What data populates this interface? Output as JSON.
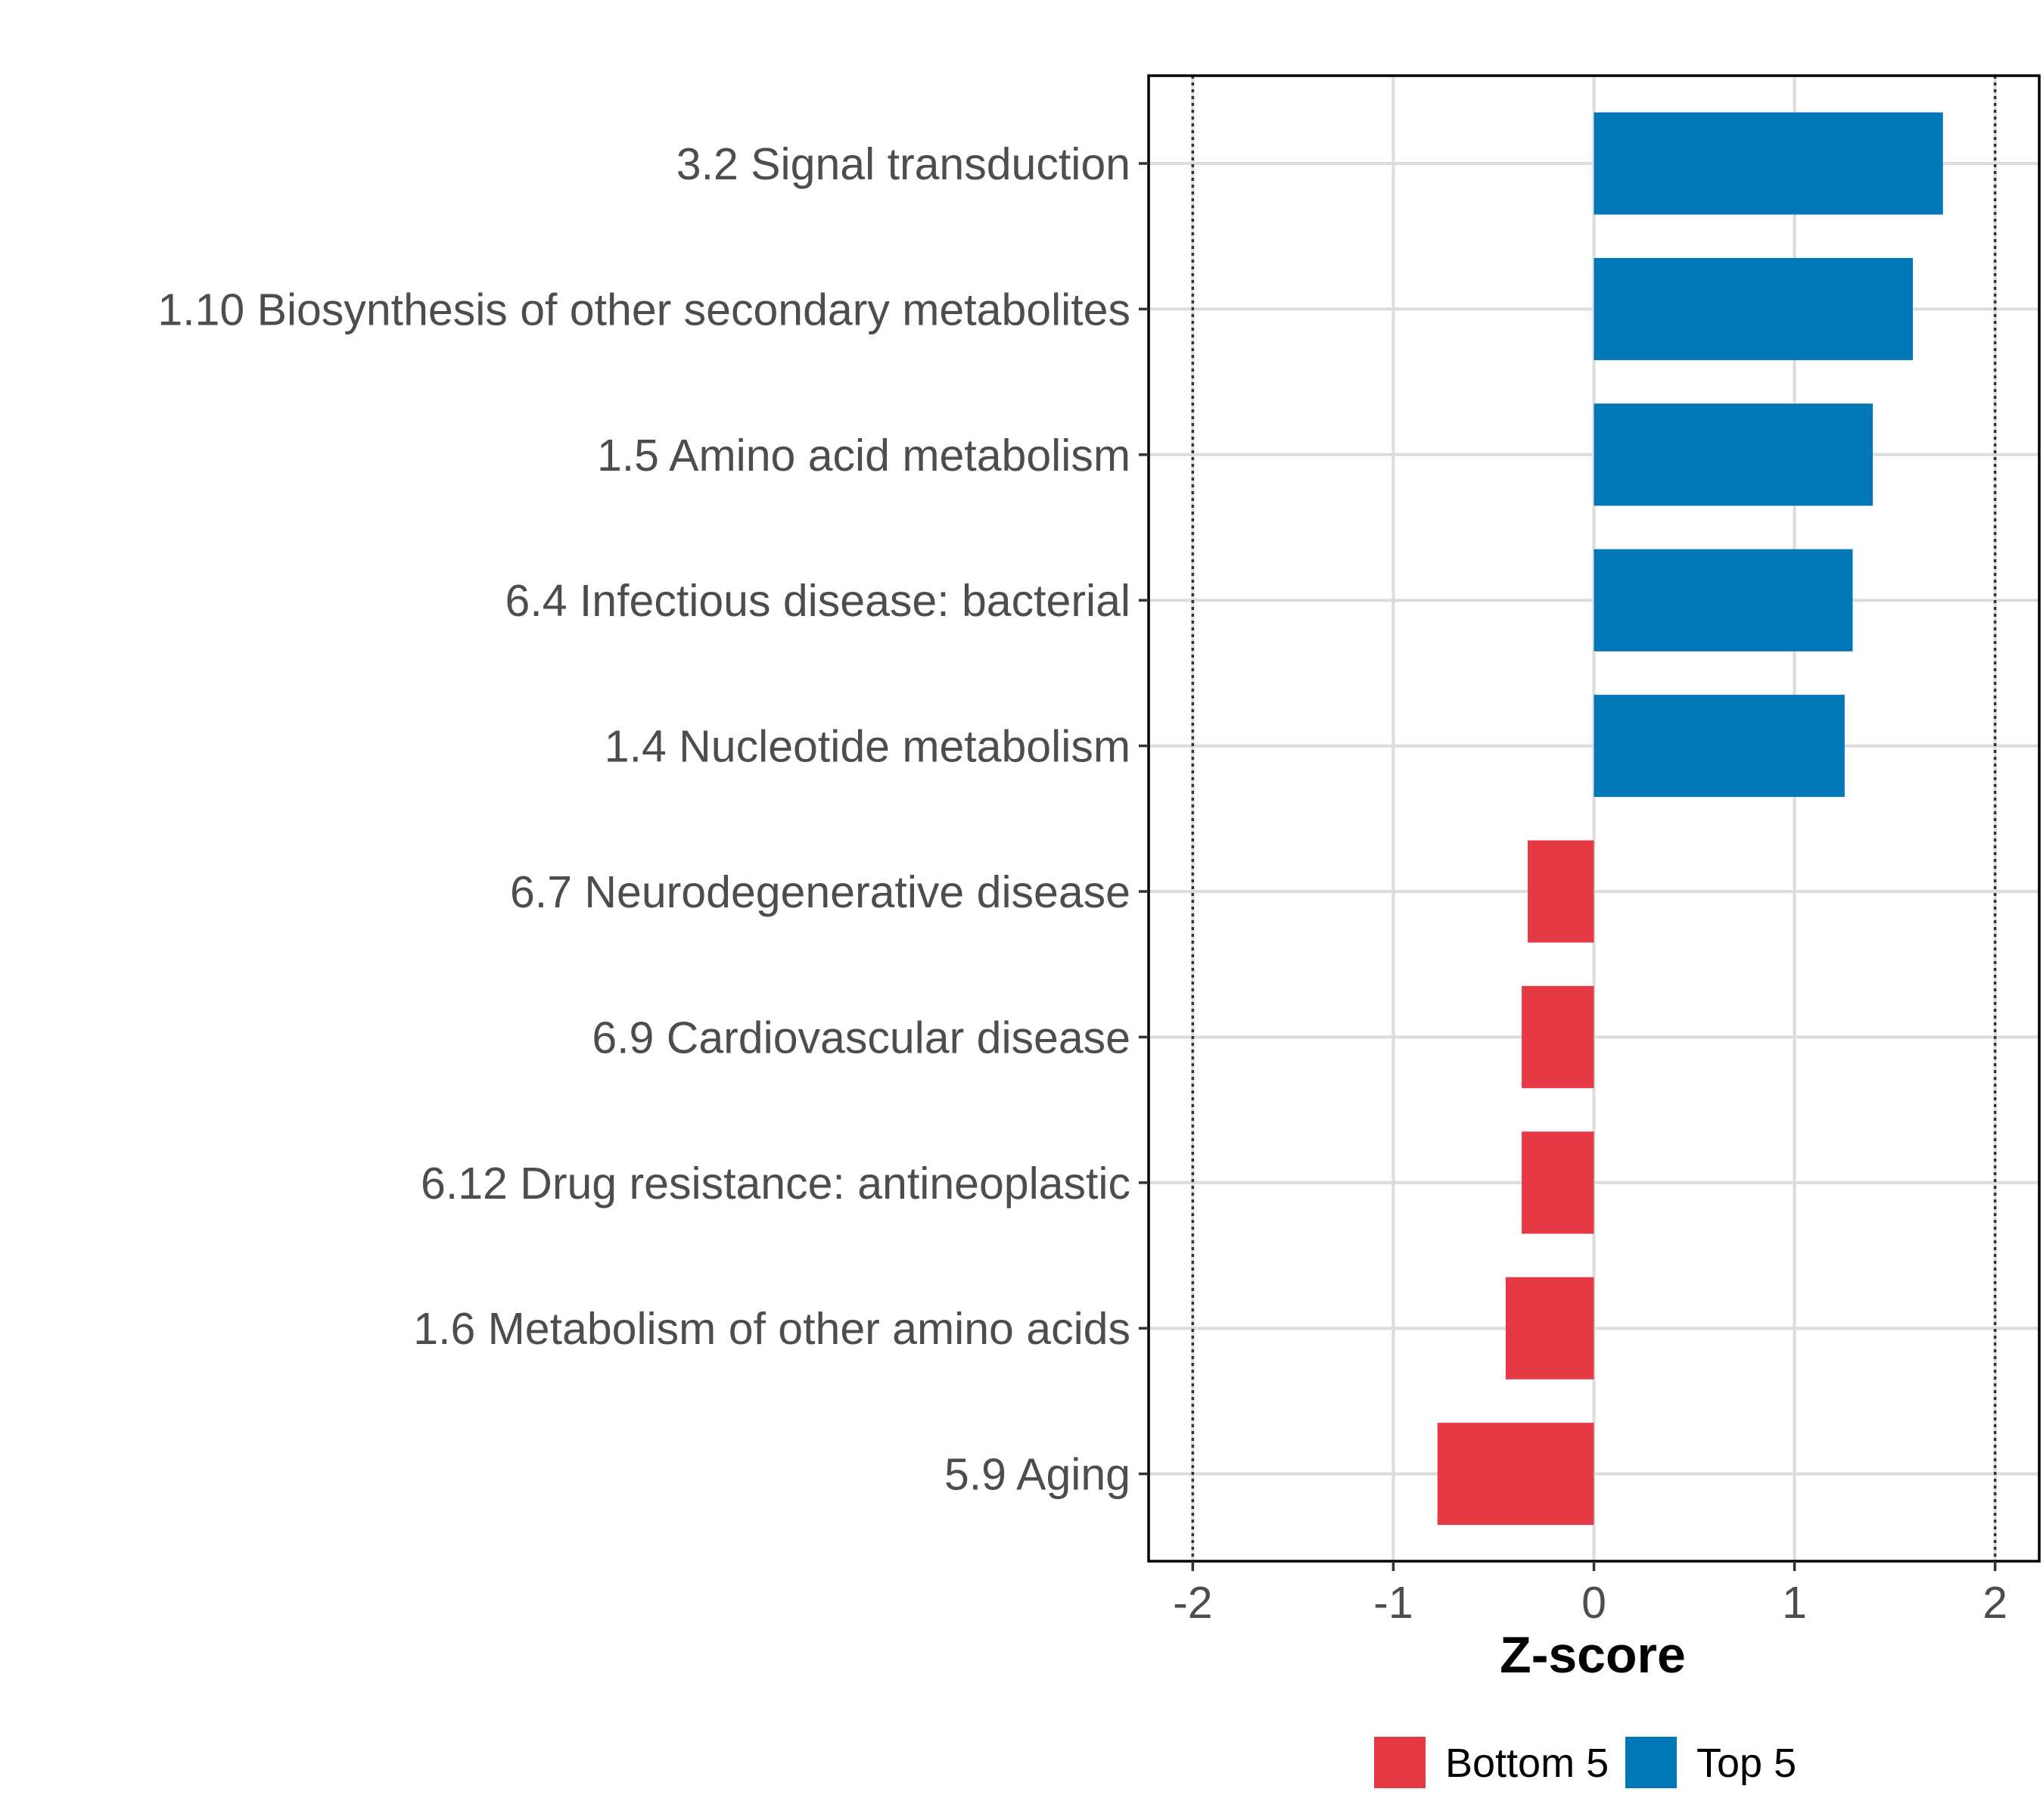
{
  "chart_data": {
    "type": "bar",
    "orientation": "horizontal",
    "title": "",
    "xlabel": "Z-score",
    "ylabel": "",
    "xlim": [
      -2.22,
      2.22
    ],
    "xticks": [
      -2,
      -1,
      0,
      1,
      2
    ],
    "xtick_labels": [
      "-2",
      "-1",
      "0",
      "1",
      "2"
    ],
    "reference_lines": [
      -2,
      2
    ],
    "grid": true,
    "categories": [
      "3.2 Signal transduction",
      "1.10 Biosynthesis of other secondary metabolites",
      "1.5 Amino acid metabolism",
      "6.4 Infectious disease: bacterial",
      "1.4 Nucleotide metabolism",
      "6.7 Neurodegenerative disease",
      "6.9 Cardiovascular disease",
      "6.12 Drug resistance: antineoplastic",
      "1.6 Metabolism of other amino acids",
      "5.9 Aging"
    ],
    "values": [
      1.74,
      1.59,
      1.39,
      1.29,
      1.25,
      -0.33,
      -0.36,
      -0.36,
      -0.44,
      -0.78
    ],
    "groups": [
      "Top 5",
      "Top 5",
      "Top 5",
      "Top 5",
      "Top 5",
      "Bottom 5",
      "Bottom 5",
      "Bottom 5",
      "Bottom 5",
      "Bottom 5"
    ],
    "legend": {
      "position": "bottom",
      "entries": [
        {
          "label": "Bottom 5",
          "color": "#E63946"
        },
        {
          "label": "Top 5",
          "color": "#0077B6"
        }
      ]
    },
    "colors": {
      "Bottom 5": "#E63946",
      "Top 5": "#0077B6"
    }
  }
}
